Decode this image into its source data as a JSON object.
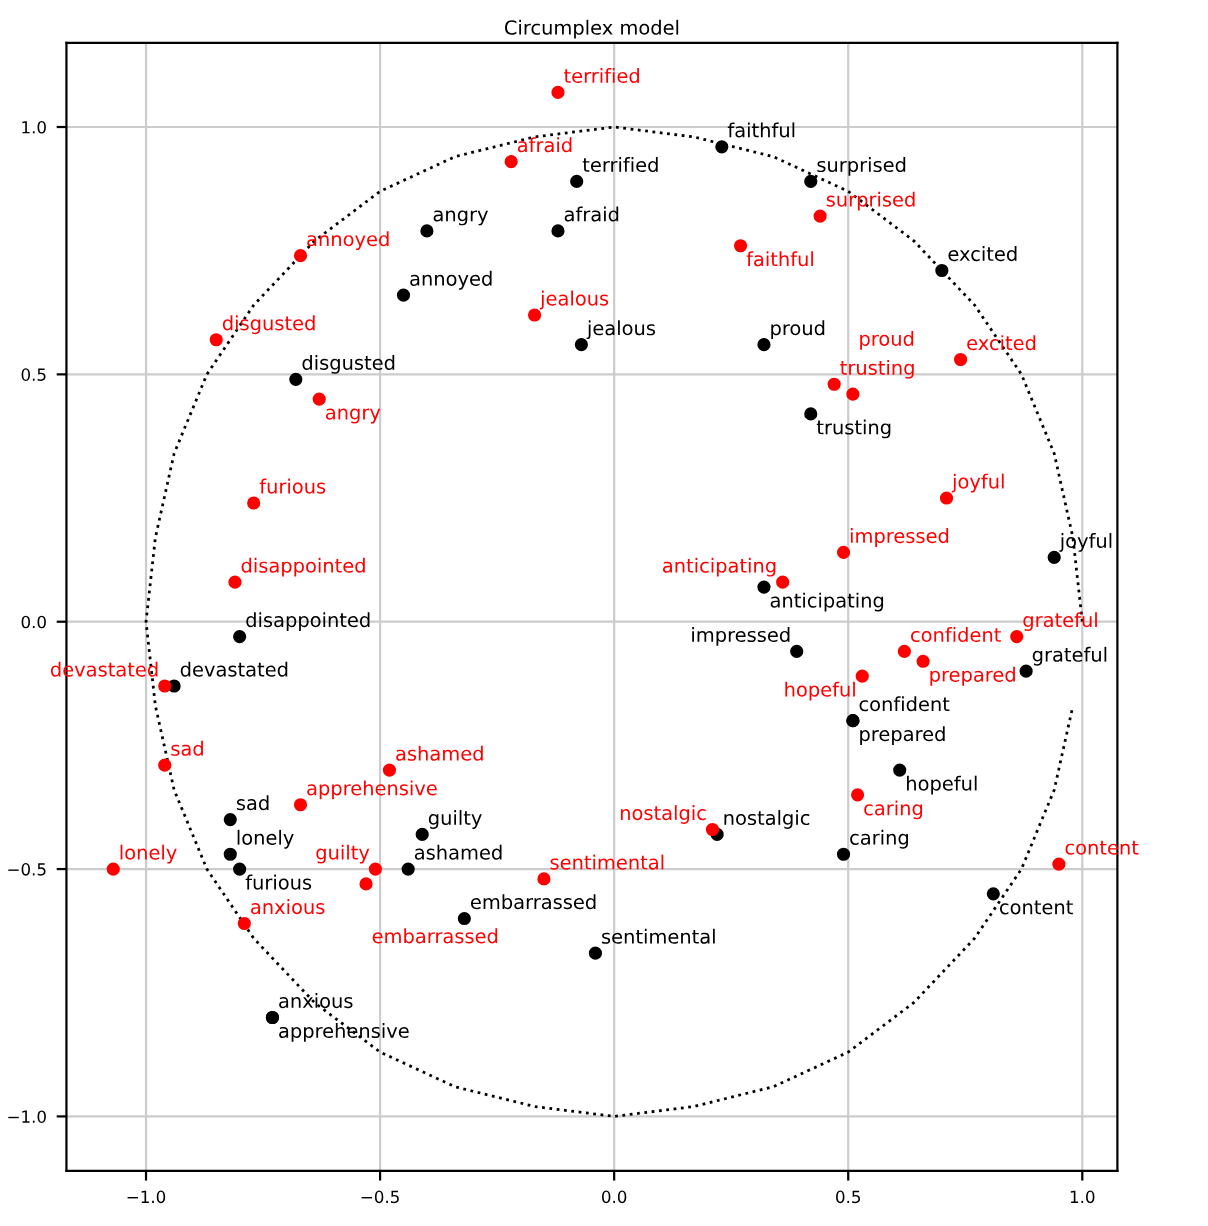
{
  "chart_data": {
    "type": "scatter",
    "title": "Circumplex model",
    "marker": "circle",
    "grid": true,
    "xlim": [
      -1.17,
      1.075
    ],
    "ylim": [
      -1.11,
      1.17
    ],
    "xticks": [
      {
        "value": -1.0,
        "label": "−1.0"
      },
      {
        "value": -0.5,
        "label": "−0.5"
      },
      {
        "value": 0.0,
        "label": "0.0"
      },
      {
        "value": 0.5,
        "label": "0.5"
      },
      {
        "value": 1.0,
        "label": "1.0"
      }
    ],
    "yticks": [
      {
        "value": -1.0,
        "label": "−1.0"
      },
      {
        "value": -0.5,
        "label": "−0.5"
      },
      {
        "value": 0.0,
        "label": "0.0"
      },
      {
        "value": 0.5,
        "label": "0.5"
      },
      {
        "value": 1.0,
        "label": "1.0"
      }
    ],
    "series": [
      {
        "type": "line",
        "color": "#000000",
        "line_style": "dotted",
        "marker": "none",
        "x": [
          1,
          0.98,
          0.94,
          0.87,
          0.77,
          0.64,
          0.5,
          0.34,
          0.17,
          0,
          -0.17,
          -0.34,
          -0.5,
          -0.64,
          -0.77,
          -0.87,
          -0.94,
          -0.98,
          -1,
          -0.98,
          -0.94,
          -0.87,
          -0.77,
          -0.64,
          -0.5,
          -0.34,
          -0.17,
          0,
          0.17,
          0.34,
          0.5,
          0.64,
          0.77,
          0.87,
          0.94,
          0.98
        ],
        "values": [
          0,
          0.17,
          0.34,
          0.5,
          0.64,
          0.77,
          0.87,
          0.94,
          0.98,
          1,
          0.98,
          0.94,
          0.87,
          0.77,
          0.64,
          0.5,
          0.34,
          0.17,
          0,
          -0.17,
          -0.34,
          -0.5,
          -0.64,
          -0.77,
          -0.87,
          -0.94,
          -0.98,
          -1,
          -0.98,
          -0.94,
          -0.87,
          -0.77,
          -0.64,
          -0.5,
          -0.34,
          -0.17
        ]
      },
      {
        "color": "#000000",
        "x": [
          -0.4,
          -0.12,
          -0.08,
          -0.45,
          -0.07,
          -0.68,
          0.23,
          0.42,
          0.7,
          0.32,
          0.42,
          0.94,
          0.32,
          -0.8,
          -0.94,
          -0.82,
          -0.82,
          -0.8,
          -0.41,
          -0.44,
          -0.32,
          -0.73,
          -0.73,
          -0.04,
          0.39,
          0.88,
          0.51,
          0.51,
          0.61,
          0.22,
          0.49,
          0.81
        ],
        "values": [
          0.79,
          0.79,
          0.89,
          0.66,
          0.56,
          0.49,
          0.96,
          0.89,
          0.71,
          0.56,
          0.42,
          0.13,
          0.07,
          -0.03,
          -0.13,
          -0.4,
          -0.47,
          -0.5,
          -0.43,
          -0.5,
          -0.6,
          -0.8,
          -0.8,
          -0.67,
          -0.06,
          -0.1,
          -0.2,
          -0.2,
          -0.3,
          -0.43,
          -0.47,
          -0.55
        ],
        "value_labels": [
          "angry",
          "afraid",
          "terrified",
          "annoyed",
          "jealous",
          "disgusted",
          "faithful",
          "surprised",
          "excited",
          "proud",
          "trusting",
          "joyful",
          "anticipating",
          "disappointed",
          "devastated",
          "sad",
          "lonely",
          "furious",
          "guilty",
          "ashamed",
          "embarrassed",
          "anxious",
          "apprehensive",
          "sentimental",
          "impressed",
          "grateful",
          "confident",
          "prepared",
          "hopeful",
          "nostalgic",
          "caring",
          "content"
        ]
      },
      {
        "color": "#ff0000",
        "x": [
          -0.12,
          -0.22,
          -0.67,
          -0.17,
          -0.85,
          -0.63,
          -0.77,
          -0.81,
          0.44,
          0.27,
          0.74,
          0.47,
          0.51,
          0.71,
          0.49,
          0.36,
          -0.96,
          -0.96,
          -0.48,
          -0.67,
          -1.07,
          -0.51,
          -0.53,
          -0.79,
          -0.15,
          0.62,
          0.86,
          0.66,
          0.53,
          0.52,
          0.21,
          0.95
        ],
        "values": [
          1.07,
          0.93,
          0.74,
          0.62,
          0.57,
          0.45,
          0.24,
          0.08,
          0.82,
          0.76,
          0.53,
          0.48,
          0.46,
          0.25,
          0.14,
          0.08,
          -0.13,
          -0.29,
          -0.3,
          -0.37,
          -0.5,
          -0.5,
          -0.53,
          -0.61,
          -0.52,
          -0.06,
          -0.03,
          -0.08,
          -0.11,
          -0.35,
          -0.42,
          -0.49
        ],
        "value_labels": [
          "terrified",
          "afraid",
          "annoyed",
          "jealous",
          "disgusted",
          "angry",
          "furious",
          "disappointed",
          "surprised",
          "faithful",
          "excited",
          "trusting",
          "proud",
          "joyful",
          "impressed",
          "anticipating",
          "devastated",
          "sad",
          "ashamed",
          "apprehensive",
          "lonely",
          "guilty",
          "embarrassed",
          "anxious",
          "sentimental",
          "confident",
          "grateful",
          "prepared",
          "hopeful",
          "caring",
          "nostalgic",
          "content"
        ]
      }
    ]
  }
}
